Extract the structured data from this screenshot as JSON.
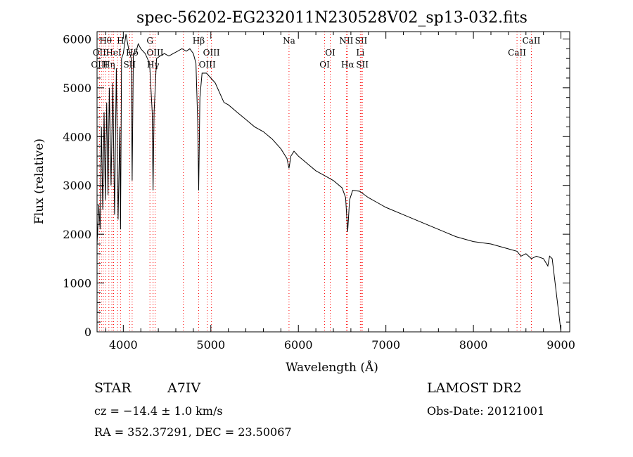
{
  "chart_data": {
    "type": "line",
    "title": "spec-56202-EG232011N230528V02_sp13-032.fits",
    "xlabel": "Wavelength (Å)",
    "ylabel": "Flux (relative)",
    "xlim": [
      3700,
      9100
    ],
    "ylim": [
      0,
      6150
    ],
    "xticks": [
      4000,
      5000,
      6000,
      7000,
      8000,
      9000
    ],
    "yticks": [
      0,
      1000,
      2000,
      3000,
      4000,
      5000,
      6000
    ],
    "grid": false,
    "line_color": "#000000",
    "marker_color": "#ff0000",
    "series": [
      {
        "x": [
          3700,
          3720,
          3735,
          3750,
          3765,
          3780,
          3795,
          3810,
          3825,
          3840,
          3860,
          3880,
          3900,
          3920,
          3940,
          3960,
          3968,
          3980,
          4000,
          4030,
          4060,
          4090,
          4101,
          4115,
          4140,
          4170,
          4200,
          4250,
          4300,
          4330,
          4340,
          4352,
          4380,
          4420,
          4470,
          4520,
          4570,
          4620,
          4670,
          4720,
          4760,
          4800,
          4830,
          4850,
          4861,
          4875,
          4900,
          4950,
          5000,
          5050,
          5100,
          5150,
          5200,
          5300,
          5400,
          5500,
          5600,
          5700,
          5800,
          5870,
          5893,
          5915,
          5950,
          6000,
          6100,
          6200,
          6300,
          6400,
          6500,
          6540,
          6563,
          6585,
          6620,
          6700,
          6800,
          6900,
          7000,
          7200,
          7400,
          7600,
          7800,
          8000,
          8200,
          8400,
          8498,
          8542,
          8600,
          8662,
          8720,
          8800,
          8850,
          8870,
          8900,
          9000
        ],
        "y": [
          1800,
          2600,
          2100,
          4200,
          2500,
          4500,
          2700,
          4700,
          2800,
          5000,
          3000,
          5100,
          2400,
          5400,
          2300,
          4200,
          2100,
          5600,
          5700,
          6100,
          5800,
          5600,
          3100,
          5700,
          5700,
          5900,
          5800,
          5700,
          5500,
          4500,
          2900,
          4500,
          5600,
          5650,
          5700,
          5650,
          5700,
          5750,
          5800,
          5750,
          5800,
          5700,
          5500,
          4300,
          2900,
          4800,
          5300,
          5300,
          5200,
          5100,
          4900,
          4700,
          4650,
          4500,
          4350,
          4200,
          4100,
          3950,
          3750,
          3550,
          3350,
          3600,
          3700,
          3600,
          3450,
          3300,
          3200,
          3100,
          2950,
          2750,
          2050,
          2700,
          2900,
          2880,
          2750,
          2650,
          2550,
          2400,
          2250,
          2100,
          1950,
          1850,
          1800,
          1700,
          1650,
          1550,
          1600,
          1500,
          1550,
          1500,
          1350,
          1550,
          1500,
          0
        ]
      }
    ],
    "line_markers": [
      {
        "name": "Hθ",
        "x": 3798,
        "row": 1
      },
      {
        "name": "H",
        "x": 3968,
        "row": 1
      },
      {
        "name": "G",
        "x": 4304,
        "row": 1
      },
      {
        "name": "Hβ",
        "x": 4861,
        "row": 1
      },
      {
        "name": "Na",
        "x": 5893,
        "row": 1
      },
      {
        "name": "NII",
        "x": 6548,
        "row": 1
      },
      {
        "name": "SII",
        "x": 6717,
        "row": 1
      },
      {
        "name": "CaII",
        "x": 8662,
        "row": 1
      },
      {
        "name": "OII",
        "x": 3727,
        "row": 2
      },
      {
        "name": "HeI",
        "x": 3889,
        "row": 2
      },
      {
        "name": "Hδ",
        "x": 4101,
        "row": 2
      },
      {
        "name": "OIII",
        "x": 4363,
        "row": 2
      },
      {
        "name": "OIII",
        "x": 5007,
        "row": 2
      },
      {
        "name": "OI",
        "x": 6364,
        "row": 2
      },
      {
        "name": "Li",
        "x": 6708,
        "row": 2
      },
      {
        "name": "CaII",
        "x": 8498,
        "row": 2
      },
      {
        "name": "OIII",
        "x": 3727,
        "row": 3
      },
      {
        "name": "Hη",
        "x": 3835,
        "row": 3
      },
      {
        "name": "SII",
        "x": 4072,
        "row": 3
      },
      {
        "name": "Hγ",
        "x": 4340,
        "row": 3
      },
      {
        "name": "OIII",
        "x": 4959,
        "row": 3
      },
      {
        "name": "OI",
        "x": 6300,
        "row": 3
      },
      {
        "name": "Hα",
        "x": 6563,
        "row": 3
      },
      {
        "name": "SII",
        "x": 6731,
        "row": 3
      }
    ],
    "extra_marker_lines": [
      3750,
      3771,
      3869,
      3934,
      4686,
      8542
    ]
  },
  "info": {
    "object_type": "STAR",
    "subclass": "A7IV",
    "survey": "LAMOST DR2",
    "redshift": "cz = −14.4 ± 1.0 km/s",
    "obs_date": "Obs-Date: 20121001",
    "coords": "RA = 352.37291, DEC =  23.50067"
  }
}
